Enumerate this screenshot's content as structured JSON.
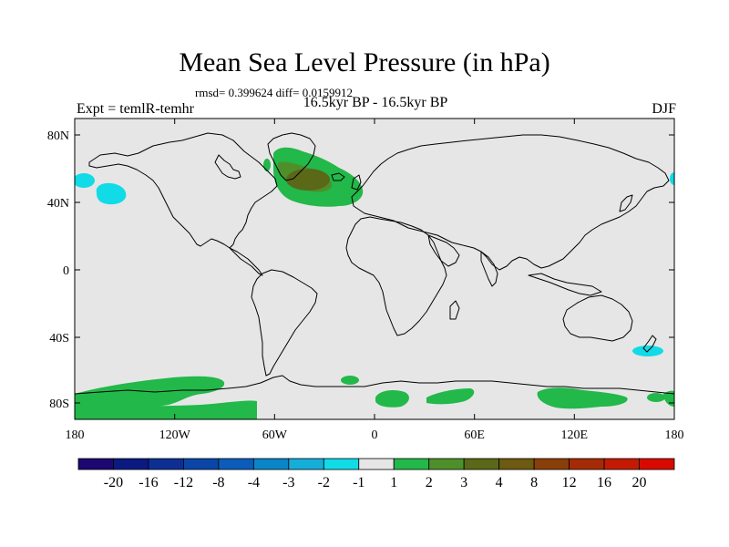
{
  "title": "Mean Sea Level Pressure (in hPa)",
  "stats": "rmsd= 0.399624 diff= 0.0159912",
  "period": "16.5kyr BP - 16.5kyr BP",
  "experiment": "Expt = temlR-temhr",
  "season": "DJF",
  "axes": {
    "lat_ticks": [
      "80N",
      "40N",
      "0",
      "40S",
      "80S"
    ],
    "lon_ticks": [
      "180",
      "120W",
      "60W",
      "0",
      "60E",
      "120E",
      "180"
    ]
  },
  "colorbar": {
    "labels": [
      "-20",
      "-16",
      "-12",
      "-8",
      "-4",
      "-3",
      "-2",
      "-1",
      "1",
      "2",
      "3",
      "4",
      "8",
      "12",
      "16",
      "20"
    ],
    "colors": [
      "#1c0870",
      "#0b1a80",
      "#0d2f94",
      "#0a45a8",
      "#0c5cbc",
      "#0a86c8",
      "#15aedb",
      "#10dbe6",
      "#e6e6e6",
      "#22b84a",
      "#4f8f2a",
      "#5a6818",
      "#6e5a10",
      "#8a3e08",
      "#a52a06",
      "#c41a04",
      "#d80a00"
    ]
  },
  "colors": {
    "background_field": "#e6e6e6",
    "positive_1_2": "#22b84a",
    "positive_2_3": "#4f8f2a",
    "negative_1_2": "#10dbe6"
  }
}
